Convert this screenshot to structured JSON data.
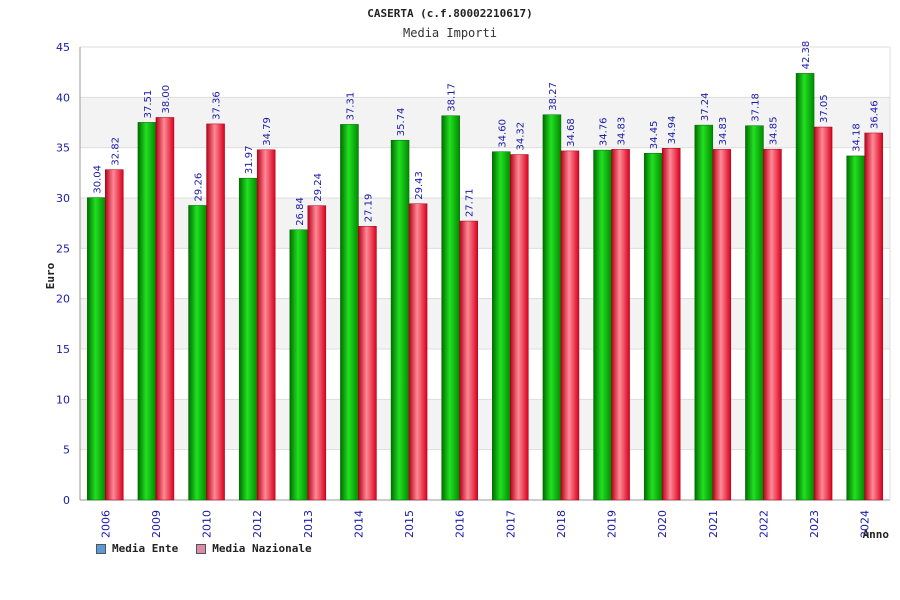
{
  "chart_data": {
    "type": "bar",
    "title": "CASERTA (c.f.80002210617)",
    "subtitle": "Media Importi",
    "ylabel": "Euro",
    "xlabel": "Anno",
    "ylim": [
      0,
      45
    ],
    "yticks": [
      0,
      5,
      10,
      15,
      20,
      25,
      30,
      35,
      40,
      45
    ],
    "grid": true,
    "legend_position": "bottom-left",
    "categories": [
      "2006",
      "2009",
      "2010",
      "2012",
      "2013",
      "2014",
      "2015",
      "2016",
      "2017",
      "2018",
      "2019",
      "2020",
      "2021",
      "2022",
      "2023",
      "2024"
    ],
    "series": [
      {
        "name": "Media Ente",
        "color": "#00c000",
        "legend_color": "#5b9bd5",
        "values": [
          30.04,
          37.51,
          29.26,
          31.97,
          26.84,
          37.31,
          35.74,
          38.17,
          34.6,
          38.27,
          34.76,
          34.45,
          37.24,
          37.18,
          42.38,
          34.18
        ],
        "labels": [
          "30.04",
          "37.51",
          "29.26",
          "31.97",
          "26.84",
          "37.31",
          "35.74",
          "38.17",
          "34.60",
          "38.27",
          "34.76",
          "34.45",
          "37.24",
          "37.18",
          "42.38",
          "34.18"
        ]
      },
      {
        "name": "Media Nazionale",
        "color": "#e81c2c",
        "legend_color": "#d98ba8",
        "values": [
          32.82,
          38.0,
          37.36,
          34.79,
          29.24,
          27.19,
          29.43,
          27.71,
          34.32,
          34.68,
          34.83,
          34.94,
          34.83,
          34.85,
          37.05,
          36.46
        ],
        "labels": [
          "32.82",
          "38.00",
          "37.36",
          "34.79",
          "29.24",
          "27.19",
          "29.43",
          "27.71",
          "34.32",
          "34.68",
          "34.83",
          "34.94",
          "34.83",
          "34.85",
          "37.05",
          "36.46"
        ]
      }
    ]
  }
}
